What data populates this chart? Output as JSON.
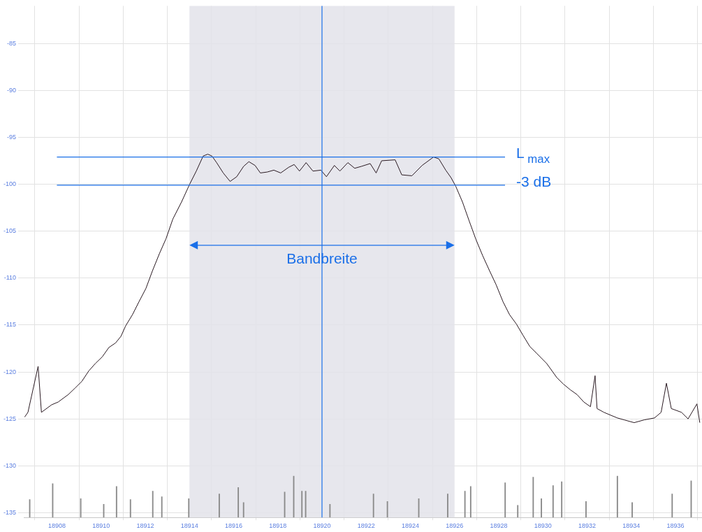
{
  "chart_data": {
    "type": "line",
    "xlim": [
      18906.5,
      18937.2
    ],
    "ylim": [
      -135.5,
      -81
    ],
    "xticks": [
      18908,
      18910,
      18912,
      18914,
      18916,
      18918,
      18920,
      18922,
      18924,
      18926,
      18928,
      18930,
      18932,
      18934,
      18936
    ],
    "yticks": [
      -135,
      -130,
      -125,
      -120,
      -115,
      -110,
      -105,
      -100,
      -95,
      -90,
      -85
    ],
    "grid": true,
    "legend": false,
    "marker": "none",
    "line_style": "solid",
    "series": [
      {
        "color": "#2a1a22",
        "x": [
          18906.54,
          18906.69,
          18907.15,
          18907.3,
          18907.76,
          18908.06,
          18908.52,
          18908.83,
          18909.13,
          18909.44,
          18909.74,
          18910.05,
          18910.35,
          18910.66,
          18910.9,
          18911.11,
          18911.42,
          18911.72,
          18912.03,
          18912.33,
          18912.64,
          18912.94,
          18913.25,
          18913.64,
          18914.01,
          18914.31,
          18914.62,
          18914.83,
          18915.02,
          18915.23,
          18915.53,
          18915.84,
          18916.14,
          18916.45,
          18916.69,
          18916.97,
          18917.21,
          18917.52,
          18917.82,
          18918.13,
          18918.49,
          18918.74,
          18918.98,
          18919.28,
          18919.59,
          18919.95,
          18920.2,
          18920.56,
          18920.81,
          18921.17,
          18921.48,
          18921.78,
          18922.18,
          18922.45,
          18922.7,
          18923.31,
          18923.61,
          18924.07,
          18924.53,
          18925.05,
          18925.29,
          18925.6,
          18925.84,
          18926.05,
          18926.36,
          18926.66,
          18926.97,
          18927.27,
          18927.58,
          18927.88,
          18928.19,
          18928.49,
          18928.8,
          18929.1,
          18929.41,
          18929.71,
          18930.17,
          18930.63,
          18930.93,
          18931.24,
          18931.54,
          18931.85,
          18932.15,
          18932.36,
          18932.45,
          18932.76,
          18933.06,
          18933.37,
          18933.67,
          18934.13,
          18934.59,
          18935.05,
          18935.35,
          18935.59,
          18935.81,
          18936.27,
          18936.57,
          18936.97,
          18937.1
        ],
        "values": [
          -124.8,
          -124.3,
          -119.4,
          -124.3,
          -123.5,
          -123.2,
          -122.4,
          -121.7,
          -121.0,
          -119.9,
          -119.1,
          -118.4,
          -117.4,
          -116.9,
          -116.2,
          -115.1,
          -113.9,
          -112.5,
          -111.1,
          -109.2,
          -107.4,
          -105.8,
          -103.7,
          -101.9,
          -100.0,
          -98.6,
          -97.0,
          -96.8,
          -97.0,
          -97.7,
          -98.8,
          -99.7,
          -99.2,
          -98.1,
          -97.6,
          -98.0,
          -98.8,
          -98.7,
          -98.5,
          -98.8,
          -98.2,
          -97.9,
          -98.6,
          -97.7,
          -98.6,
          -98.5,
          -99.2,
          -98.0,
          -98.6,
          -97.7,
          -98.3,
          -98.1,
          -97.8,
          -98.8,
          -97.5,
          -97.4,
          -99.0,
          -99.1,
          -98.0,
          -97.1,
          -97.3,
          -98.5,
          -99.3,
          -100.2,
          -101.9,
          -103.9,
          -105.9,
          -107.6,
          -109.2,
          -110.7,
          -112.5,
          -113.9,
          -114.9,
          -116.1,
          -117.3,
          -118.0,
          -119.1,
          -120.6,
          -121.3,
          -121.9,
          -122.4,
          -123.2,
          -123.7,
          -120.4,
          -123.9,
          -124.3,
          -124.6,
          -124.9,
          -125.1,
          -125.4,
          -125.1,
          -124.9,
          -124.3,
          -121.2,
          -123.9,
          -124.3,
          -125.0,
          -123.4,
          -125.4
        ]
      },
      {
        "type": "bar",
        "color": "#8a8a8a",
        "x": [
          18906.77,
          18907.81,
          18909.08,
          18910.12,
          18910.7,
          18911.33,
          18912.34,
          18912.75,
          18913.97,
          18915.35,
          18916.21,
          18916.45,
          18918.31,
          18918.72,
          18919.09,
          18919.26,
          18920.36,
          18922.33,
          18922.96,
          18924.38,
          18925.69,
          18926.47,
          18926.73,
          18928.29,
          18928.86,
          18929.56,
          18929.93,
          18930.46,
          18930.85,
          18931.95,
          18933.37,
          18934.04,
          18935.85,
          18936.71
        ],
        "base": [
          -135.5,
          -135.5,
          -135.5,
          -135.5,
          -135.5,
          -135.5,
          -135.5,
          -135.5,
          -135.5,
          -135.5,
          -135.5,
          -135.5,
          -135.5,
          -135.5,
          -135.5,
          -135.5,
          -135.5,
          -135.5,
          -135.5,
          -135.5,
          -135.5,
          -135.5,
          -135.5,
          -135.5,
          -135.5,
          -135.5,
          -135.5,
          -135.5,
          -135.5,
          -135.5,
          -135.5,
          -135.5,
          -135.5,
          -135.5
        ],
        "values": [
          1.9,
          3.6,
          2.0,
          1.4,
          3.3,
          1.9,
          2.8,
          2.2,
          2.0,
          2.5,
          3.2,
          1.6,
          2.7,
          4.4,
          2.8,
          2.8,
          1.4,
          2.5,
          1.7,
          2.0,
          2.5,
          2.8,
          3.3,
          3.7,
          1.3,
          4.3,
          2.0,
          3.4,
          3.8,
          1.7,
          4.4,
          1.6,
          2.5,
          3.9
        ]
      }
    ],
    "ref_lines": [
      {
        "axis": "y",
        "value": -97.1,
        "label": "L$_{max}$",
        "color": "#1a6fe8"
      },
      {
        "axis": "y",
        "value": -100.1,
        "label": "-3 dB",
        "color": "#1a6fe8"
      },
      {
        "axis": "x",
        "value": 18920,
        "color": "#1a6fe8"
      }
    ],
    "bands": [
      {
        "axis": "x",
        "from": 18914,
        "to": 18926,
        "color": "#e3e3ea"
      }
    ],
    "annotations": [
      {
        "text": "Bandbreite",
        "x": 18920,
        "y": -106.5
      }
    ]
  }
}
